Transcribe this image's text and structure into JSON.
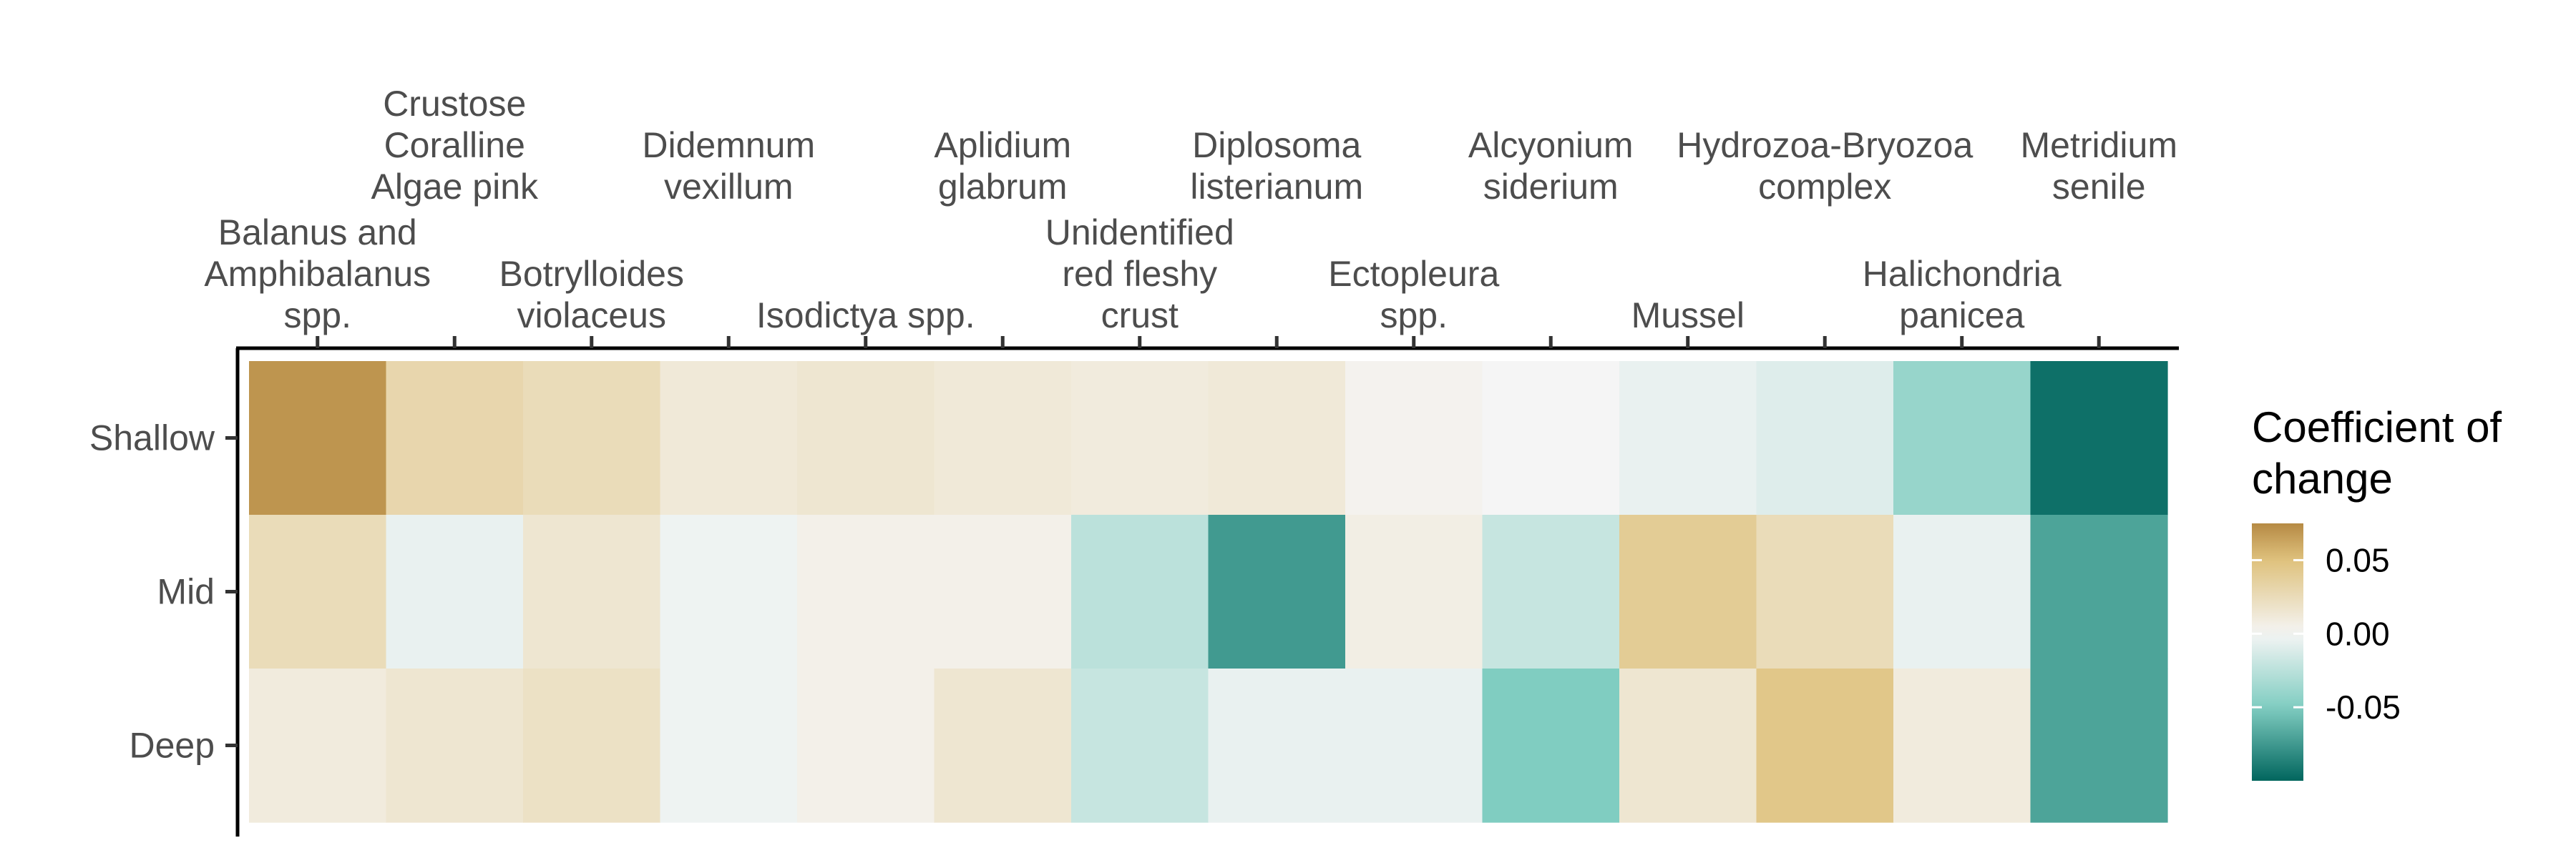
{
  "chart_data": {
    "type": "heatmap",
    "title": "",
    "xlabel": "",
    "ylabel": "",
    "x_axis_position": "top",
    "x_categories": [
      [
        "Balanus and",
        "Amphibalanus",
        "spp."
      ],
      [
        "Crustose",
        "Coralline",
        "Algae pink"
      ],
      [
        "Botrylloides",
        "violaceus"
      ],
      [
        "Didemnum",
        "vexillum"
      ],
      [
        "Isodictya spp."
      ],
      [
        "Aplidium",
        "glabrum"
      ],
      [
        "Unidentified",
        "red fleshy",
        "crust"
      ],
      [
        "Diplosoma",
        "listerianum"
      ],
      [
        "Ectopleura",
        "spp."
      ],
      [
        "Alcyonium",
        "siderium"
      ],
      [
        "Mussel"
      ],
      [
        "Hydrozoa-Bryozoa",
        "complex"
      ],
      [
        "Halichondria",
        "panicea"
      ],
      [
        "Metridium",
        "senile"
      ]
    ],
    "y_categories": [
      "Shallow",
      "Mid",
      "Deep"
    ],
    "values": [
      [
        0.07,
        0.03,
        0.025,
        0.012,
        0.015,
        0.012,
        0.01,
        0.012,
        0.003,
        0.0,
        -0.005,
        -0.01,
        -0.04,
        -0.095
      ],
      [
        0.025,
        -0.005,
        0.015,
        -0.003,
        0.005,
        0.005,
        -0.025,
        -0.075,
        0.007,
        -0.02,
        0.04,
        0.025,
        -0.005,
        -0.07
      ],
      [
        0.01,
        0.015,
        0.02,
        -0.003,
        0.005,
        0.015,
        -0.02,
        -0.005,
        -0.005,
        -0.05,
        0.015,
        0.045,
        0.01,
        -0.07
      ]
    ],
    "legend": {
      "title": [
        "Coefficient of",
        "change"
      ],
      "ticks": [
        0.05,
        0.0,
        -0.05
      ],
      "tick_labels": [
        "0.05",
        "0.00",
        "-0.05"
      ],
      "range": [
        -0.1,
        0.075
      ],
      "placement": "right"
    },
    "colors": {
      "high": "#8c510a",
      "mid_high": "#dfc27d",
      "mid": "#f5f5f5",
      "mid_low": "#80cdc1",
      "low": "#01665e"
    }
  }
}
